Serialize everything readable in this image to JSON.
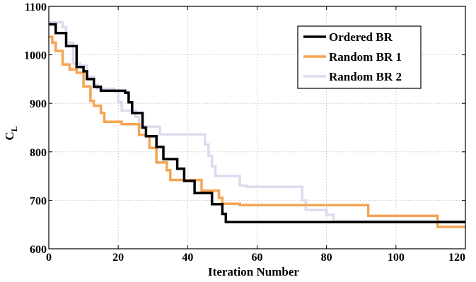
{
  "chart_data": {
    "type": "line",
    "xlabel": "Iteration Number",
    "ylabel": "C",
    "ylabel_subscript": "L",
    "xlim": [
      0,
      120
    ],
    "ylim": [
      600,
      1100
    ],
    "xticks": [
      0,
      20,
      40,
      60,
      80,
      100,
      120
    ],
    "yticks": [
      600,
      700,
      800,
      900,
      1000,
      1100
    ],
    "grid": true,
    "legend_position": "top-right",
    "series": [
      {
        "name": "Ordered BR",
        "color": "#000000",
        "points": [
          [
            0,
            1063
          ],
          [
            2,
            1063
          ],
          [
            2,
            1045
          ],
          [
            5,
            1045
          ],
          [
            5,
            1018
          ],
          [
            8,
            1018
          ],
          [
            8,
            975
          ],
          [
            10,
            975
          ],
          [
            10,
            966
          ],
          [
            11,
            966
          ],
          [
            11,
            950
          ],
          [
            13,
            950
          ],
          [
            13,
            934
          ],
          [
            15,
            934
          ],
          [
            15,
            926
          ],
          [
            22,
            926
          ],
          [
            22,
            922
          ],
          [
            23,
            922
          ],
          [
            23,
            902
          ],
          [
            24,
            902
          ],
          [
            24,
            880
          ],
          [
            27,
            880
          ],
          [
            27,
            850
          ],
          [
            28,
            850
          ],
          [
            28,
            832
          ],
          [
            31,
            832
          ],
          [
            31,
            810
          ],
          [
            33,
            810
          ],
          [
            33,
            785
          ],
          [
            37,
            785
          ],
          [
            37,
            765
          ],
          [
            39,
            765
          ],
          [
            39,
            740
          ],
          [
            42,
            740
          ],
          [
            42,
            715
          ],
          [
            47,
            715
          ],
          [
            47,
            692
          ],
          [
            50,
            692
          ],
          [
            50,
            672
          ],
          [
            51,
            672
          ],
          [
            51,
            655
          ],
          [
            120,
            655
          ]
        ]
      },
      {
        "name": "Random BR 1",
        "color": "#f5a554",
        "points": [
          [
            0,
            1037
          ],
          [
            1,
            1037
          ],
          [
            1,
            1025
          ],
          [
            2,
            1025
          ],
          [
            2,
            1008
          ],
          [
            4,
            1008
          ],
          [
            4,
            980
          ],
          [
            6,
            980
          ],
          [
            6,
            970
          ],
          [
            8,
            970
          ],
          [
            8,
            963
          ],
          [
            10,
            963
          ],
          [
            10,
            935
          ],
          [
            12,
            935
          ],
          [
            12,
            905
          ],
          [
            13,
            905
          ],
          [
            13,
            895
          ],
          [
            15,
            895
          ],
          [
            15,
            880
          ],
          [
            16,
            880
          ],
          [
            16,
            862
          ],
          [
            21,
            862
          ],
          [
            21,
            857
          ],
          [
            26,
            857
          ],
          [
            26,
            835
          ],
          [
            28,
            835
          ],
          [
            28,
            832
          ],
          [
            29,
            832
          ],
          [
            29,
            808
          ],
          [
            31,
            808
          ],
          [
            31,
            778
          ],
          [
            34,
            778
          ],
          [
            34,
            762
          ],
          [
            35,
            762
          ],
          [
            35,
            742
          ],
          [
            44,
            742
          ],
          [
            44,
            720
          ],
          [
            49,
            720
          ],
          [
            49,
            705
          ],
          [
            50,
            705
          ],
          [
            50,
            693
          ],
          [
            55,
            693
          ],
          [
            55,
            690
          ],
          [
            92,
            690
          ],
          [
            92,
            668
          ],
          [
            112,
            668
          ],
          [
            112,
            645
          ],
          [
            120,
            645
          ]
        ]
      },
      {
        "name": "Random BR 2",
        "color": "#dcdcf0",
        "points": [
          [
            0,
            1067
          ],
          [
            4,
            1067
          ],
          [
            4,
            1057
          ],
          [
            5,
            1057
          ],
          [
            5,
            1025
          ],
          [
            7,
            1025
          ],
          [
            7,
            982
          ],
          [
            9,
            982
          ],
          [
            9,
            978
          ],
          [
            11,
            978
          ],
          [
            11,
            955
          ],
          [
            13,
            955
          ],
          [
            13,
            938
          ],
          [
            14,
            938
          ],
          [
            14,
            930
          ],
          [
            19,
            930
          ],
          [
            19,
            925
          ],
          [
            20,
            925
          ],
          [
            20,
            903
          ],
          [
            21,
            903
          ],
          [
            21,
            885
          ],
          [
            25,
            885
          ],
          [
            25,
            872
          ],
          [
            26,
            872
          ],
          [
            26,
            852
          ],
          [
            32,
            852
          ],
          [
            32,
            836
          ],
          [
            45,
            836
          ],
          [
            45,
            815
          ],
          [
            46,
            815
          ],
          [
            46,
            792
          ],
          [
            47,
            792
          ],
          [
            47,
            770
          ],
          [
            48,
            770
          ],
          [
            48,
            750
          ],
          [
            55,
            750
          ],
          [
            55,
            730
          ],
          [
            57,
            730
          ],
          [
            57,
            728
          ],
          [
            73,
            728
          ],
          [
            73,
            700
          ],
          [
            74,
            700
          ],
          [
            74,
            680
          ],
          [
            80,
            680
          ],
          [
            80,
            670
          ],
          [
            82,
            670
          ],
          [
            82,
            657
          ],
          [
            120,
            657
          ]
        ]
      }
    ]
  }
}
